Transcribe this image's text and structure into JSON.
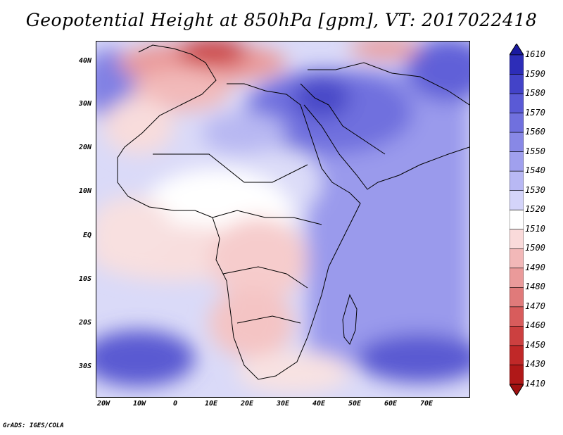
{
  "title": "Geopotential Height at 850hPa [gpm], VT: 2017022418",
  "credit": "GrADS: IGES/COLA",
  "map": {
    "lon_ticks": [
      "20W",
      "10W",
      "0",
      "10E",
      "20E",
      "30E",
      "40E",
      "50E",
      "60E",
      "70E"
    ],
    "lat_ticks": [
      "40N",
      "30N",
      "20N",
      "10N",
      "EQ",
      "10S",
      "20S",
      "30S"
    ],
    "colorbar": {
      "labels": [
        "1610",
        "1590",
        "1580",
        "1570",
        "1560",
        "1550",
        "1540",
        "1530",
        "1520",
        "1510",
        "1500",
        "1490",
        "1480",
        "1470",
        "1460",
        "1450",
        "1430",
        "1410"
      ],
      "colors": [
        "#1a1aa0",
        "#2d2db8",
        "#4343c8",
        "#5a5ad6",
        "#7070de",
        "#8888e6",
        "#a0a0ee",
        "#b8b8f4",
        "#d4d4fa",
        "#ffffff",
        "#fadada",
        "#f2b8b8",
        "#ea9a9a",
        "#e07a7a",
        "#d85c5c",
        "#cc4040",
        "#c02828",
        "#b01818",
        "#a01010"
      ]
    }
  }
}
